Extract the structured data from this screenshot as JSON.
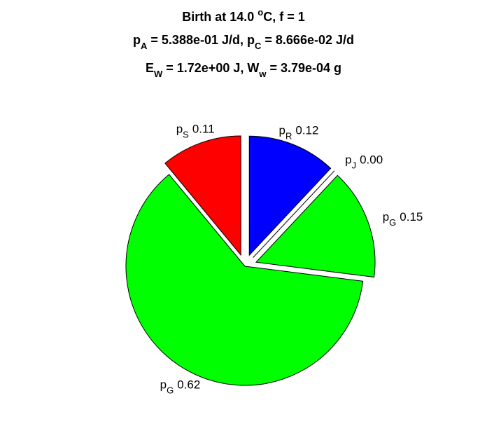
{
  "chart_data": {
    "type": "pie",
    "title_lines": [
      [
        {
          "text": "Birth at 14.0 ",
          "shift": "none"
        },
        {
          "text": "o",
          "shift": "sup"
        },
        {
          "text": "C, f = 1",
          "shift": "none"
        }
      ],
      [
        {
          "text": "p",
          "shift": "none"
        },
        {
          "text": "A",
          "shift": "sub"
        },
        {
          "text": " = 5.388e-01 J/d, p",
          "shift": "none"
        },
        {
          "text": "C",
          "shift": "sub"
        },
        {
          "text": " = 8.666e-02 J/d",
          "shift": "none"
        }
      ],
      [
        {
          "text": "E",
          "shift": "none"
        },
        {
          "text": "W",
          "shift": "sub"
        },
        {
          "text": " = 1.72e+00 J, W",
          "shift": "none"
        },
        {
          "text": "w",
          "shift": "sub"
        },
        {
          "text": " = 3.79e-04 g",
          "shift": "none"
        }
      ]
    ],
    "slices": [
      {
        "name": "p",
        "sub": "R",
        "color": "#0000ff",
        "explode": true
      },
      {
        "name": "p",
        "sub": "J",
        "color": "#00ff00",
        "explode": true
      },
      {
        "name": "p",
        "sub": "G",
        "color": "#00ff00",
        "explode": true
      },
      {
        "name": "p",
        "sub": "G",
        "color": "#00ff00",
        "explode": false
      },
      {
        "name": "p",
        "sub": "S",
        "color": "#ff0000",
        "explode": true
      }
    ],
    "values": [
      0.12,
      0.0,
      0.15,
      0.62,
      0.11
    ],
    "value_labels": [
      "0.12",
      "0.00",
      "0.15",
      "0.62",
      "0.11"
    ]
  }
}
